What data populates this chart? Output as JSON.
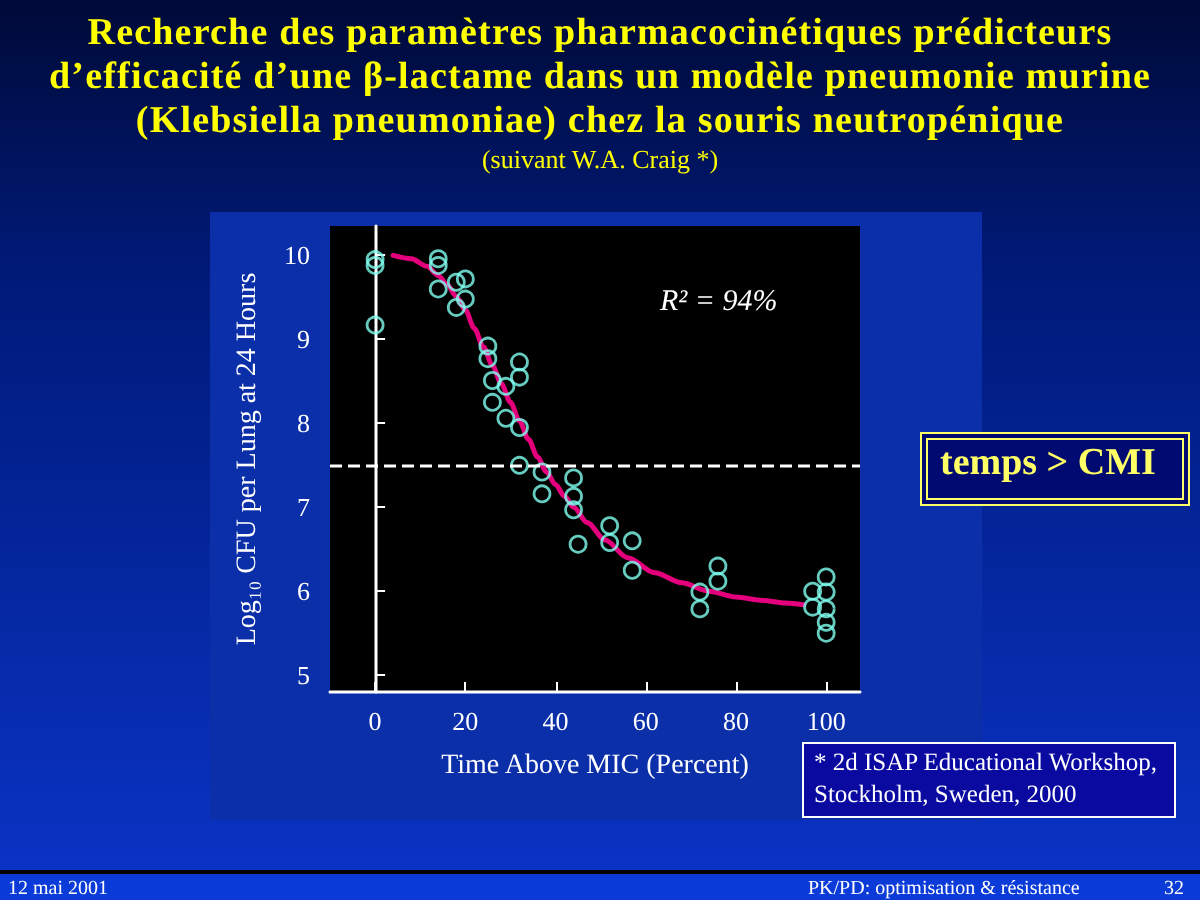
{
  "chart_data": {
    "type": "scatter",
    "title": "Recherche des paramètres pharmacocinétiques prédicteurs d’efficacité d’une β-lactame dans un modèle  pneumonie murine (Klebsiella pneumoniae) chez la souris neutropénique",
    "subtitle": "(suivant W.A. Craig *)",
    "xlabel": "Time Above MIC (Percent)",
    "ylabel": "Log₁₀ CFU per Lung at 24 Hours",
    "annotations": [
      "R² = 94%",
      "temps > CMI",
      "* 2d ISAP Educational Workshop, Stockholm, Sweden, 2000",
      "12 mai 2001",
      "PK/PD: optimisation & résistance",
      "32"
    ],
    "xlim": [
      -10,
      107.5
    ],
    "ylim": [
      4.8,
      10.35
    ],
    "xticks": [
      0,
      20,
      40,
      60,
      80,
      100
    ],
    "yticks": [
      5,
      6,
      7,
      8,
      9,
      10
    ],
    "series": [
      {
        "color": "#80fff0",
        "marker": "circle",
        "x": [
          0,
          0,
          0,
          14,
          14,
          14,
          18,
          18,
          20,
          20,
          25,
          25,
          26,
          26,
          29,
          29,
          32,
          32,
          32,
          32,
          37,
          37,
          44,
          44,
          44,
          45,
          52,
          52,
          57,
          57,
          72,
          72,
          76,
          76,
          97,
          97,
          100,
          100,
          100,
          100,
          100
        ],
        "values": [
          9.95,
          9.88,
          9.17,
          9.96,
          9.88,
          9.6,
          9.68,
          9.38,
          9.72,
          9.48,
          8.92,
          8.77,
          8.51,
          8.25,
          8.44,
          8.06,
          8.73,
          8.55,
          7.95,
          7.5,
          7.42,
          7.16,
          7.35,
          7.13,
          6.97,
          6.56,
          6.78,
          6.58,
          6.6,
          6.25,
          5.99,
          5.79,
          6.3,
          6.12,
          6.0,
          5.81,
          6.17,
          5.99,
          5.79,
          5.63,
          5.5
        ]
      },
      {
        "type": "line",
        "color": "#e4007c",
        "marker": "none",
        "line_style": "solid",
        "x": [
          4,
          8,
          11.5,
          14,
          16,
          18,
          20,
          22,
          24,
          26,
          28,
          30,
          32,
          34,
          36,
          38,
          40,
          42,
          44,
          47,
          51,
          56,
          62,
          68,
          74,
          80,
          86,
          91,
          95
        ],
        "values": [
          10.0,
          9.96,
          9.87,
          9.76,
          9.65,
          9.51,
          9.35,
          9.13,
          8.91,
          8.69,
          8.47,
          8.25,
          8.03,
          7.81,
          7.6,
          7.42,
          7.27,
          7.13,
          7.0,
          6.82,
          6.61,
          6.4,
          6.22,
          6.1,
          6.0,
          5.93,
          5.89,
          5.86,
          5.84
        ]
      }
    ],
    "ref_lines": [
      {
        "axis": "y",
        "value": 7.5,
        "color": "#ffffff",
        "line_style": "dashed"
      }
    ]
  }
}
